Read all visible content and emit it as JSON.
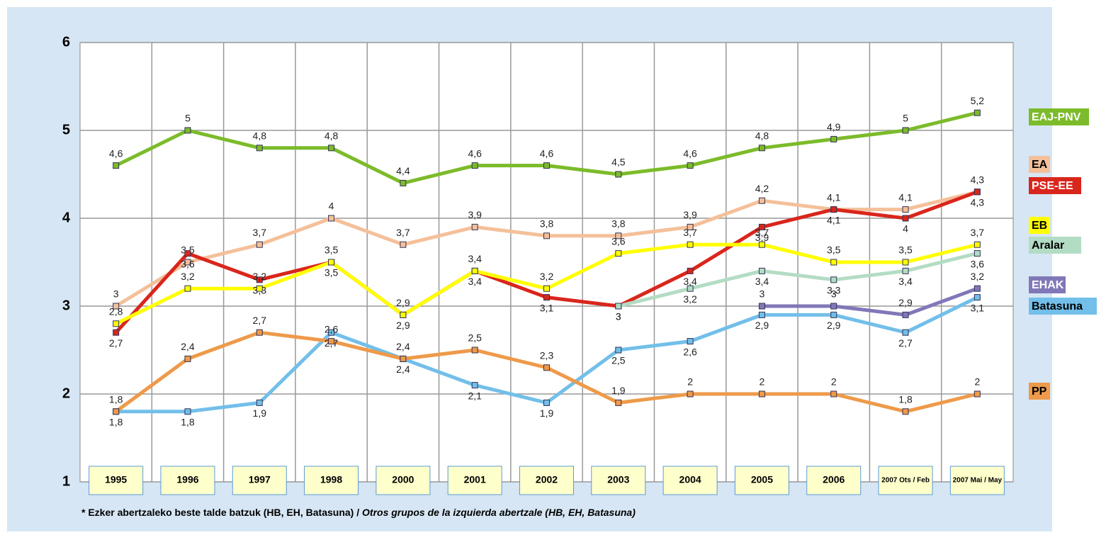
{
  "chart_data": {
    "type": "line",
    "categories": [
      "1995",
      "1996",
      "1997",
      "1998",
      "2000",
      "2001",
      "2002",
      "2003",
      "2004",
      "2005",
      "2006",
      "2007 Ots / Feb",
      "2007 Mai / May"
    ],
    "ylim": [
      1,
      6
    ],
    "yticks": [
      1,
      2,
      3,
      4,
      5,
      6
    ],
    "grid": true,
    "series": [
      {
        "name": "EAJ-PNV",
        "color": "#7cbb2a",
        "values": [
          4.6,
          5,
          4.8,
          4.8,
          4.4,
          4.6,
          4.6,
          4.5,
          4.6,
          4.8,
          4.9,
          5,
          5.2
        ],
        "value_labels": [
          "4,6",
          "5",
          "4,8",
          "4,8",
          "4,4",
          "4,6",
          "4,6",
          "4,5",
          "4,6",
          "4,8",
          "4,9",
          "5",
          "5,2"
        ]
      },
      {
        "name": "EA",
        "color": "#f4c09a",
        "values": [
          3,
          3.5,
          3.7,
          4,
          3.7,
          3.9,
          3.8,
          3.8,
          3.9,
          4.2,
          4.1,
          4.1,
          4.3
        ],
        "value_labels": [
          "3",
          "3,5",
          "3,7",
          "4",
          "3,7",
          "3,9",
          "3,8",
          "3,8",
          "3,9",
          "4,2",
          "4,1",
          "4,1",
          "4,3"
        ]
      },
      {
        "name": "PSE-EE",
        "color": "#d9261c",
        "values": [
          2.7,
          3.6,
          3.3,
          3.5,
          2.9,
          3.4,
          3.1,
          3,
          3.4,
          3.9,
          4.1,
          4,
          4.3
        ],
        "value_labels": [
          "2,7",
          "3,6",
          "3,3",
          "3,5",
          "2,9",
          "3,4",
          "3,1",
          "3",
          "3,4",
          "3,9",
          "4,1",
          "4",
          "4,3"
        ]
      },
      {
        "name": "EB",
        "color": "#ffff00",
        "values": [
          2.8,
          3.2,
          3.2,
          3.5,
          2.9,
          3.4,
          3.2,
          3.6,
          3.7,
          3.7,
          3.5,
          3.5,
          3.7
        ],
        "value_labels": [
          "2,8",
          "3,2",
          "3,2",
          "3,5",
          "2,9",
          "3,4",
          "3,2",
          "3,6",
          "3,7",
          "3,7",
          "3,5",
          "3,5",
          "3,7"
        ]
      },
      {
        "name": "Aralar",
        "color": "#b3dcc4",
        "values": [
          null,
          null,
          null,
          null,
          null,
          null,
          null,
          3,
          3.2,
          3.4,
          3.3,
          3.4,
          3.6
        ],
        "value_labels": [
          null,
          null,
          null,
          null,
          null,
          null,
          null,
          "3",
          "3,2",
          "3,4",
          "3,3",
          "3,4",
          "3,6"
        ]
      },
      {
        "name": "EHAK",
        "color": "#8078b8",
        "values": [
          null,
          null,
          null,
          null,
          null,
          null,
          null,
          null,
          null,
          3,
          3,
          2.9,
          3.2
        ],
        "value_labels": [
          null,
          null,
          null,
          null,
          null,
          null,
          null,
          null,
          null,
          "3",
          "3",
          "2,9",
          "3,2"
        ]
      },
      {
        "name": "Batasuna",
        "color": "#72bfe9",
        "values": [
          1.8,
          1.8,
          1.9,
          2.7,
          2.4,
          2.1,
          1.9,
          2.5,
          2.6,
          2.9,
          2.9,
          2.7,
          3.1
        ],
        "value_labels": [
          "1,8",
          "1,8",
          "1,9",
          "2,7",
          "2,4",
          "2,1",
          "1,9",
          "2,5",
          "2,6",
          "2,9",
          "2,9",
          "2,7",
          "3,1"
        ]
      },
      {
        "name": "PP",
        "color": "#ee9a4a",
        "values": [
          1.8,
          2.4,
          2.7,
          2.6,
          2.4,
          2.5,
          2.3,
          1.9,
          2,
          2,
          2,
          1.8,
          2
        ],
        "value_labels": [
          "1,8",
          "2,4",
          "2,7",
          "2,6",
          "2,4",
          "2,5",
          "2,3",
          "1,9",
          "2",
          "2",
          "2",
          "1,8",
          "2"
        ]
      }
    ],
    "footnote": "* Ezker abertzaleko beste talde batzuk (HB, EH, Batasuna) / ",
    "footnote_translation": "Otros grupos de la izquierda abertzale (HB, EH, Batasuna)"
  }
}
